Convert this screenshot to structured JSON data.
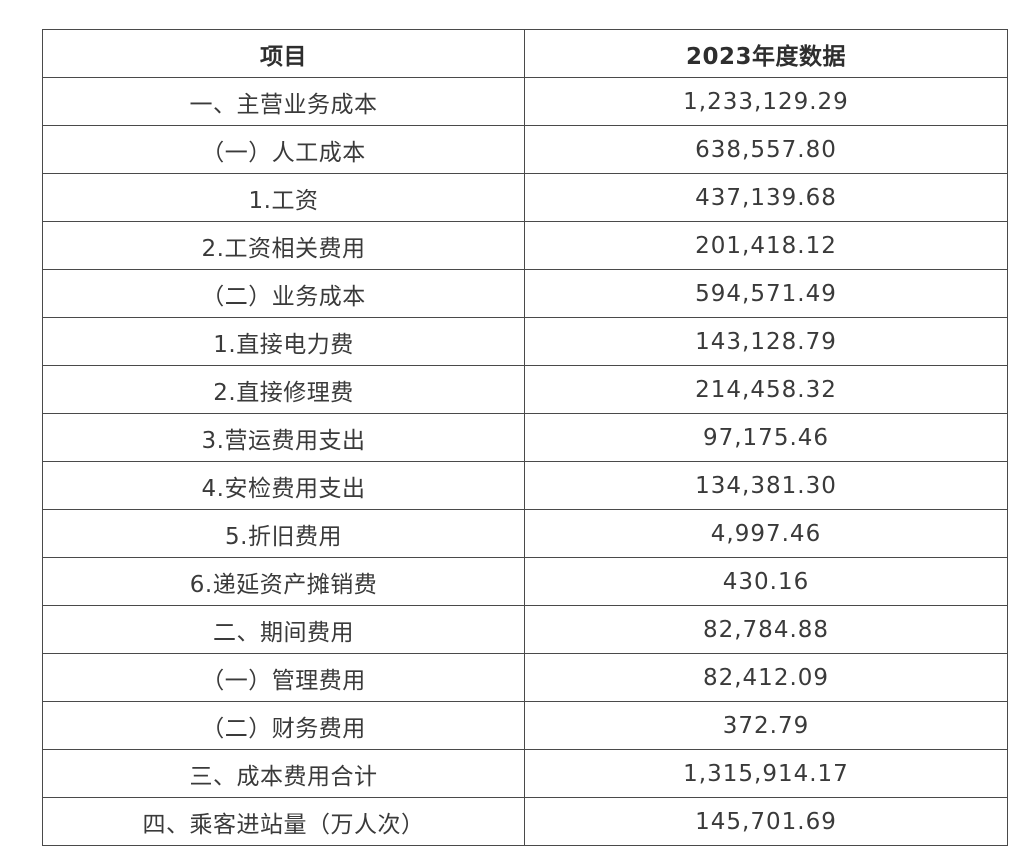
{
  "table": {
    "headers": [
      "项目",
      "2023年度数据"
    ],
    "rows": [
      {
        "item": "一、主营业务成本",
        "value": "1,233,129.29"
      },
      {
        "item": "（一）人工成本",
        "value": "638,557.80"
      },
      {
        "item": "1.工资",
        "value": "437,139.68"
      },
      {
        "item": "2.工资相关费用",
        "value": "201,418.12"
      },
      {
        "item": "（二）业务成本",
        "value": "594,571.49"
      },
      {
        "item": "1.直接电力费",
        "value": "143,128.79"
      },
      {
        "item": "2.直接修理费",
        "value": "214,458.32"
      },
      {
        "item": "3.营运费用支出",
        "value": "97,175.46"
      },
      {
        "item": "4.安检费用支出",
        "value": "134,381.30"
      },
      {
        "item": "5.折旧费用",
        "value": "4,997.46"
      },
      {
        "item": "6.递延资产摊销费",
        "value": "430.16"
      },
      {
        "item": "二、期间费用",
        "value": "82,784.88"
      },
      {
        "item": "（一）管理费用",
        "value": "82,412.09"
      },
      {
        "item": "（二）财务费用",
        "value": "372.79"
      },
      {
        "item": "三、成本费用合计",
        "value": "1,315,914.17"
      },
      {
        "item": "四、乘客进站量（万人次）",
        "value": "145,701.69"
      }
    ]
  }
}
